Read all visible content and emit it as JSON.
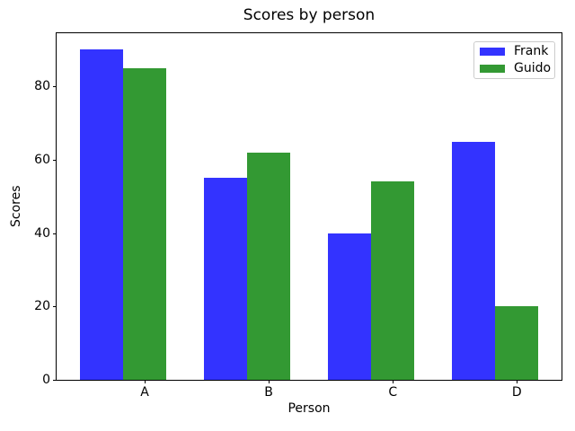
{
  "title": "Scores by person",
  "chart_data": {
    "type": "bar",
    "title": "Scores by person",
    "xlabel": "Person",
    "ylabel": "Scores",
    "categories": [
      "A",
      "B",
      "C",
      "D"
    ],
    "series": [
      {
        "name": "Frank",
        "color": "#3333ff",
        "values": [
          90,
          55,
          40,
          65
        ]
      },
      {
        "name": "Guido",
        "color": "#339933",
        "values": [
          85,
          62,
          54,
          20
        ]
      }
    ],
    "ylim": [
      0,
      94.5
    ],
    "yticks": [
      0,
      20,
      40,
      60,
      80
    ],
    "grid": false,
    "legend_position": "upper right"
  }
}
